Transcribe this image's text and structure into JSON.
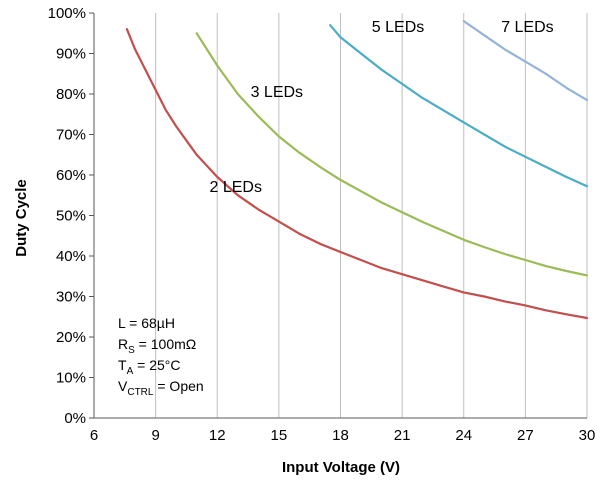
{
  "chart_data": {
    "type": "line",
    "title": "",
    "xlabel": "Input Voltage (V)",
    "ylabel": "Duty Cycle",
    "xlim": [
      6,
      30
    ],
    "ylim": [
      0,
      100
    ],
    "x_ticks": [
      "6",
      "9",
      "12",
      "15",
      "18",
      "21",
      "24",
      "27",
      "30"
    ],
    "y_ticks": [
      "0%",
      "10%",
      "20%",
      "30%",
      "40%",
      "50%",
      "60%",
      "70%",
      "80%",
      "90%",
      "100%"
    ],
    "grid": {
      "vertical": true,
      "horizontal": false
    },
    "series": [
      {
        "name": "2 LEDs",
        "color": "#c0504d",
        "x": [
          7.6,
          8,
          8.5,
          9,
          9.5,
          10,
          11,
          12,
          13,
          14,
          15,
          16,
          17,
          18,
          19,
          20,
          21,
          22,
          23,
          24,
          25,
          26,
          27,
          28,
          29,
          30
        ],
        "y": [
          96,
          91,
          86,
          81,
          76,
          72,
          65,
          59.5,
          55,
          51.5,
          48.5,
          45.5,
          43,
          41,
          39,
          37,
          35.5,
          34,
          32.5,
          31,
          30,
          28.8,
          27.8,
          26.6,
          25.6,
          24.7
        ]
      },
      {
        "name": "3 LEDs",
        "color": "#9bbb59",
        "x": [
          11,
          12,
          13,
          14,
          15,
          16,
          17,
          18,
          19,
          20,
          21,
          22,
          23,
          24,
          25,
          26,
          27,
          28,
          29,
          30
        ],
        "y": [
          95,
          87,
          80,
          74.5,
          69.5,
          65.5,
          62,
          58.8,
          56,
          53.2,
          50.8,
          48.4,
          46.2,
          44,
          42.2,
          40.5,
          39,
          37.5,
          36.3,
          35.2
        ]
      },
      {
        "name": "5 LEDs",
        "color": "#4bacc6",
        "x": [
          17.5,
          18,
          19,
          20,
          21,
          22,
          23,
          24,
          25,
          26,
          27,
          28,
          29,
          30
        ],
        "y": [
          97,
          94,
          90,
          86,
          82.5,
          79,
          76,
          73,
          70,
          67,
          64.5,
          62,
          59.5,
          57.2
        ]
      },
      {
        "name": "7 LEDs",
        "color": "#95b3d7",
        "x": [
          24,
          25,
          26,
          27,
          28,
          29,
          30
        ],
        "y": [
          98,
          94.5,
          91,
          88,
          85,
          81.5,
          78.5
        ]
      }
    ],
    "series_labels": [
      {
        "text": "2 LEDs",
        "series": 0,
        "anchor_x": 12.9,
        "anchor_y": 57
      },
      {
        "text": "3 LEDs",
        "series": 1,
        "anchor_x": 14.9,
        "anchor_y": 80.5
      },
      {
        "text": "5 LEDs",
        "series": 2,
        "anchor_x": 20.8,
        "anchor_y": 96.5
      },
      {
        "text": "7 LEDs",
        "series": 3,
        "anchor_x": 27.1,
        "anchor_y": 96.5
      }
    ],
    "annotations": [
      {
        "main": "L = 68µH",
        "sub": "",
        "rest": ""
      },
      {
        "main": "R",
        "sub": "S",
        "rest": " = 100mΩ"
      },
      {
        "main": "T",
        "sub": "A",
        "rest": " = 25°C"
      },
      {
        "main": "V",
        "sub": "CTRL",
        "rest": " = Open"
      }
    ]
  }
}
